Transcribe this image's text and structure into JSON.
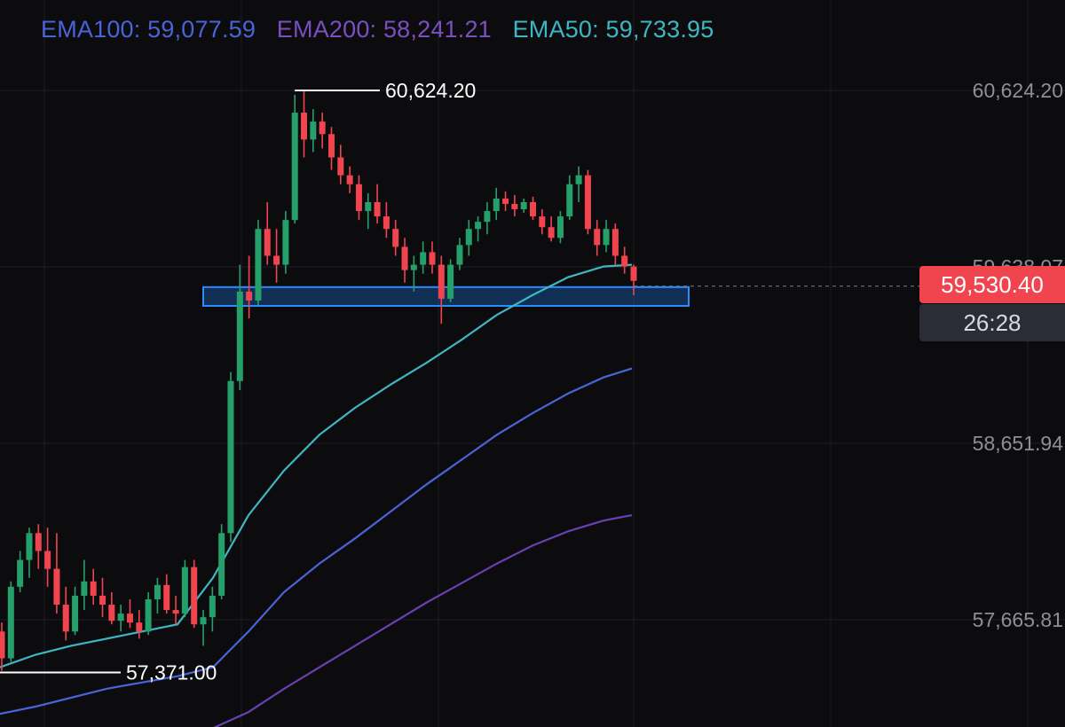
{
  "legend": [
    {
      "label": "EMA100:",
      "value": "59,077.59",
      "color": "#4a64d8"
    },
    {
      "label": "EMA200:",
      "value": "58,241.21",
      "color": "#7b4fbf"
    },
    {
      "label": "EMA50:",
      "value": "59,733.95",
      "color": "#3fb6c4"
    }
  ],
  "colors": {
    "up": "#26a06a",
    "down": "#f0454f",
    "ema50": "#3fb6c4",
    "ema100": "#4a64d8",
    "ema200": "#6a3fb0",
    "zone": "#1e6fd9"
  },
  "price_badge": "59,530.40",
  "countdown": "26:28",
  "high_label": "60,624.20",
  "low_label": "57,371.00",
  "chart_data": {
    "type": "candlestick",
    "y_ticks": [
      "60,624.20",
      "59,638.07",
      "58,651.94",
      "57,665.81"
    ],
    "y_tick_values": [
      60624.2,
      59638.07,
      58651.94,
      57665.81
    ],
    "last_price": 59530.4,
    "high": 60624.2,
    "low": 57371.0,
    "zone": {
      "from": 59420,
      "to": 59525
    },
    "candles": [
      [
        57600,
        57650,
        57380,
        57450
      ],
      [
        57450,
        57880,
        57430,
        57850
      ],
      [
        57850,
        58050,
        57820,
        58000
      ],
      [
        58000,
        58180,
        57900,
        58150
      ],
      [
        58150,
        58200,
        57950,
        58050
      ],
      [
        58050,
        58180,
        57850,
        57950
      ],
      [
        57950,
        58150,
        57700,
        57750
      ],
      [
        57750,
        57850,
        57550,
        57600
      ],
      [
        57600,
        57850,
        57580,
        57800
      ],
      [
        57800,
        58000,
        57720,
        57880
      ],
      [
        57880,
        57950,
        57750,
        57800
      ],
      [
        57800,
        57900,
        57680,
        57750
      ],
      [
        57750,
        57820,
        57640,
        57660
      ],
      [
        57660,
        57750,
        57600,
        57700
      ],
      [
        57700,
        57780,
        57620,
        57650
      ],
      [
        57650,
        57720,
        57560,
        57600
      ],
      [
        57600,
        57820,
        57580,
        57780
      ],
      [
        57780,
        57900,
        57700,
        57860
      ],
      [
        57860,
        57920,
        57700,
        57720
      ],
      [
        57720,
        57800,
        57640,
        57700
      ],
      [
        57700,
        58000,
        57680,
        57960
      ],
      [
        57960,
        58000,
        57620,
        57640
      ],
      [
        57640,
        57720,
        57520,
        57680
      ],
      [
        57680,
        57850,
        57600,
        57800
      ],
      [
        57800,
        58200,
        57780,
        58150
      ],
      [
        58150,
        59050,
        58100,
        59000
      ],
      [
        59000,
        59650,
        58950,
        59500
      ],
      [
        59500,
        59700,
        59350,
        59450
      ],
      [
        59450,
        59900,
        59420,
        59850
      ],
      [
        59850,
        60000,
        59650,
        59700
      ],
      [
        59700,
        59850,
        59550,
        59650
      ],
      [
        59650,
        59950,
        59600,
        59900
      ],
      [
        59900,
        60600,
        59880,
        60500
      ],
      [
        60500,
        60624,
        60250,
        60350
      ],
      [
        60350,
        60520,
        60280,
        60450
      ],
      [
        60450,
        60500,
        60300,
        60380
      ],
      [
        60380,
        60420,
        60180,
        60250
      ],
      [
        60250,
        60320,
        60100,
        60150
      ],
      [
        60150,
        60200,
        60050,
        60100
      ],
      [
        60100,
        60150,
        59900,
        59950
      ],
      [
        59950,
        60050,
        59850,
        60000
      ],
      [
        60000,
        60100,
        59880,
        59920
      ],
      [
        59920,
        60000,
        59800,
        59850
      ],
      [
        59850,
        59900,
        59700,
        59750
      ],
      [
        59750,
        59800,
        59550,
        59620
      ],
      [
        59620,
        59700,
        59500,
        59650
      ],
      [
        59650,
        59780,
        59600,
        59720
      ],
      [
        59720,
        59780,
        59600,
        59650
      ],
      [
        59650,
        59700,
        59320,
        59460
      ],
      [
        59460,
        59680,
        59440,
        59650
      ],
      [
        59650,
        59800,
        59620,
        59760
      ],
      [
        59760,
        59900,
        59700,
        59850
      ],
      [
        59850,
        59920,
        59780,
        59890
      ],
      [
        59890,
        60000,
        59820,
        59950
      ],
      [
        59950,
        60080,
        59900,
        60020
      ],
      [
        60020,
        60060,
        59950,
        59990
      ],
      [
        59990,
        60040,
        59920,
        59960
      ],
      [
        59960,
        60020,
        59940,
        60000
      ],
      [
        60000,
        60030,
        59900,
        59920
      ],
      [
        59920,
        59960,
        59820,
        59860
      ],
      [
        59860,
        59920,
        59780,
        59800
      ],
      [
        59800,
        59950,
        59770,
        59920
      ],
      [
        59920,
        60150,
        59900,
        60100
      ],
      [
        60100,
        60200,
        60000,
        60150
      ],
      [
        60150,
        60180,
        59820,
        59850
      ],
      [
        59850,
        59900,
        59700,
        59760
      ],
      [
        59760,
        59900,
        59720,
        59850
      ],
      [
        59850,
        59880,
        59650,
        59700
      ],
      [
        59700,
        59750,
        59600,
        59640
      ],
      [
        59640,
        59650,
        59480,
        59560
      ]
    ],
    "ema50": [
      [
        -40,
        57350
      ],
      [
        0,
        57400
      ],
      [
        40,
        57470
      ],
      [
        80,
        57520
      ],
      [
        120,
        57560
      ],
      [
        160,
        57600
      ],
      [
        200,
        57640
      ],
      [
        240,
        57900
      ],
      [
        280,
        58250
      ],
      [
        320,
        58500
      ],
      [
        360,
        58700
      ],
      [
        400,
        58850
      ],
      [
        440,
        58980
      ],
      [
        480,
        59100
      ],
      [
        520,
        59230
      ],
      [
        560,
        59370
      ],
      [
        600,
        59480
      ],
      [
        640,
        59580
      ],
      [
        680,
        59640
      ],
      [
        712,
        59650
      ]
    ],
    "ema100": [
      [
        -40,
        57100
      ],
      [
        40,
        57180
      ],
      [
        120,
        57280
      ],
      [
        200,
        57350
      ],
      [
        240,
        57400
      ],
      [
        280,
        57600
      ],
      [
        320,
        57820
      ],
      [
        360,
        57980
      ],
      [
        400,
        58120
      ],
      [
        440,
        58270
      ],
      [
        480,
        58420
      ],
      [
        520,
        58560
      ],
      [
        560,
        58700
      ],
      [
        600,
        58820
      ],
      [
        640,
        58930
      ],
      [
        680,
        59020
      ],
      [
        712,
        59070
      ]
    ],
    "ema200": [
      [
        80,
        56900
      ],
      [
        160,
        56980
      ],
      [
        240,
        57060
      ],
      [
        280,
        57150
      ],
      [
        320,
        57280
      ],
      [
        360,
        57400
      ],
      [
        400,
        57520
      ],
      [
        440,
        57640
      ],
      [
        480,
        57760
      ],
      [
        520,
        57870
      ],
      [
        560,
        57980
      ],
      [
        600,
        58080
      ],
      [
        640,
        58160
      ],
      [
        680,
        58220
      ],
      [
        712,
        58250
      ]
    ]
  }
}
